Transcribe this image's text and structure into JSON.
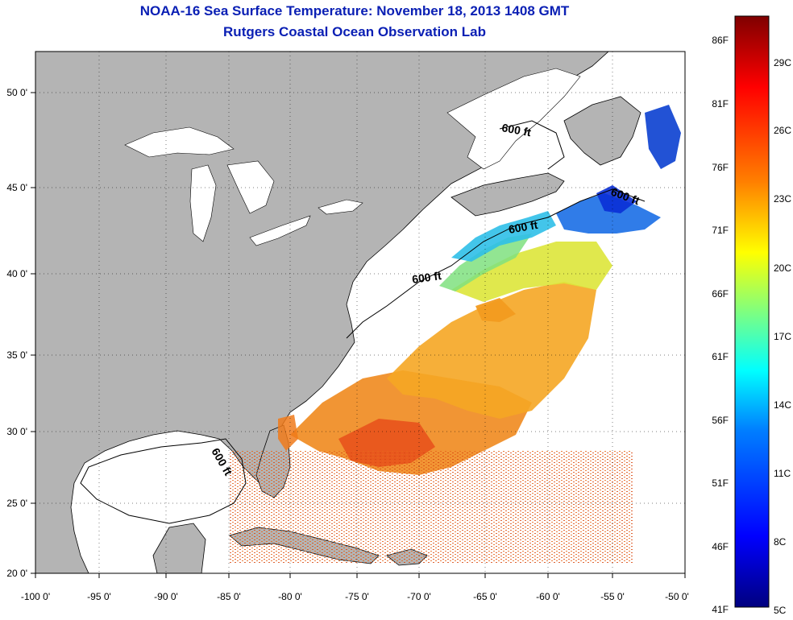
{
  "title_line1": "NOAA-16 Sea Surface Temperature:  November 18, 2013 1408 GMT",
  "title_line2": "Rutgers Coastal Ocean Observation Lab",
  "lon_ticks": [
    "-100 0'",
    "-95 0'",
    "-90 0'",
    "-85 0'",
    "-80 0'",
    "-75 0'",
    "-70 0'",
    "-65 0'",
    "-60 0'",
    "-55 0'",
    "-50 0'"
  ],
  "lat_ticks": [
    "50 0'",
    "45 0'",
    "40 0'",
    "35 0'",
    "30 0'",
    "25 0'",
    "20 0'"
  ],
  "colorbar": {
    "fahrenheit": [
      "86F",
      "81F",
      "76F",
      "71F",
      "66F",
      "61F",
      "56F",
      "51F",
      "46F",
      "41F"
    ],
    "celsius": [
      "29C",
      "26C",
      "23C",
      "20C",
      "17C",
      "14C",
      "11C",
      "8C",
      "5C"
    ],
    "colors": [
      "#00007f",
      "#0000ff",
      "#007fff",
      "#00ffff",
      "#7fff7f",
      "#ffff00",
      "#ff7f00",
      "#ff0000",
      "#7f0000"
    ]
  },
  "contour_labels": [
    "600 ft",
    "600 ft",
    "600 ft",
    "600 ft",
    "600 ft"
  ],
  "colors": {
    "land": "#b4b4b4",
    "title": "#0a1fb4",
    "ocean": "#ffffff"
  }
}
